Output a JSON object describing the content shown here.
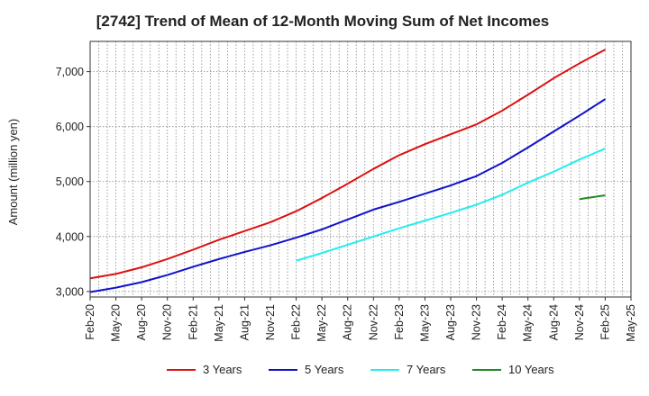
{
  "chart_data": {
    "type": "line",
    "title": "[2742]  Trend of Mean of 12-Month Moving Sum of Net Incomes",
    "xlabel": "",
    "ylabel": "Amount (million yen)",
    "x_ticks": [
      "Feb-20",
      "May-20",
      "Aug-20",
      "Nov-20",
      "Feb-21",
      "May-21",
      "Aug-21",
      "Nov-21",
      "Feb-22",
      "May-22",
      "Aug-22",
      "Nov-22",
      "Feb-23",
      "May-23",
      "Aug-23",
      "Nov-23",
      "Feb-24",
      "May-24",
      "Aug-24",
      "Nov-24",
      "Feb-25",
      "May-25"
    ],
    "y_ticks": [
      3000,
      4000,
      5000,
      6000,
      7000
    ],
    "y_tick_labels": [
      "3,000",
      "4,000",
      "5,000",
      "6,000",
      "7,000"
    ],
    "ylim": [
      2900,
      7550
    ],
    "grid": true,
    "legend_position": "bottom",
    "series": [
      {
        "name": "3 Years",
        "color": "#dd1111",
        "x": [
          "Feb-20",
          "May-20",
          "Aug-20",
          "Nov-20",
          "Feb-21",
          "May-21",
          "Aug-21",
          "Nov-21",
          "Feb-22",
          "May-22",
          "Aug-22",
          "Nov-22",
          "Feb-23",
          "May-23",
          "Aug-23",
          "Nov-23",
          "Feb-24",
          "May-24",
          "Aug-24",
          "Nov-24",
          "Feb-25"
        ],
        "values": [
          3240,
          3320,
          3440,
          3590,
          3760,
          3940,
          4100,
          4260,
          4460,
          4700,
          4960,
          5230,
          5480,
          5680,
          5860,
          6040,
          6290,
          6580,
          6880,
          7150,
          7400
        ]
      },
      {
        "name": "5 Years",
        "color": "#1111cc",
        "x": [
          "Feb-20",
          "May-20",
          "Aug-20",
          "Nov-20",
          "Feb-21",
          "May-21",
          "Aug-21",
          "Nov-21",
          "Feb-22",
          "May-22",
          "Aug-22",
          "Nov-22",
          "Feb-23",
          "May-23",
          "Aug-23",
          "Nov-23",
          "Feb-24",
          "May-24",
          "Aug-24",
          "Nov-24",
          "Feb-25"
        ],
        "values": [
          2990,
          3070,
          3170,
          3300,
          3450,
          3590,
          3720,
          3840,
          3980,
          4130,
          4310,
          4490,
          4630,
          4780,
          4930,
          5100,
          5340,
          5620,
          5910,
          6200,
          6500
        ]
      },
      {
        "name": "7 Years",
        "color": "#22eeee",
        "x": [
          "Feb-22",
          "May-22",
          "Aug-22",
          "Nov-22",
          "Feb-23",
          "May-23",
          "Aug-23",
          "Nov-23",
          "Feb-24",
          "May-24",
          "Aug-24",
          "Nov-24",
          "Feb-25"
        ],
        "values": [
          3560,
          3700,
          3850,
          4000,
          4150,
          4290,
          4430,
          4580,
          4760,
          4980,
          5180,
          5400,
          5600
        ]
      },
      {
        "name": "10 Years",
        "color": "#228822",
        "x": [
          "Nov-24",
          "Feb-25"
        ],
        "values": [
          4680,
          4750
        ]
      }
    ]
  }
}
